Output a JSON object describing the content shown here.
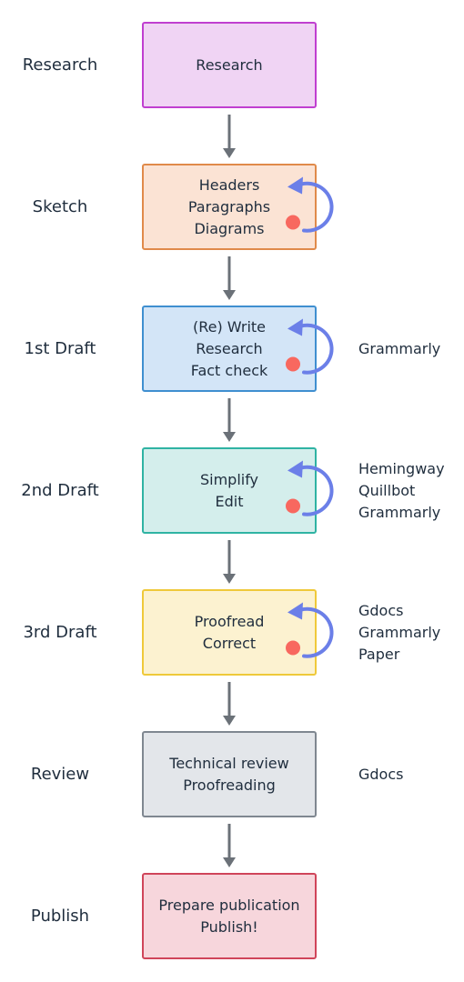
{
  "stages": [
    {
      "label": "Research",
      "lines": [
        "Research"
      ],
      "tools": [],
      "loop": false,
      "fill": "#f0d4f4",
      "stroke": "#c03fd0"
    },
    {
      "label": "Sketch",
      "lines": [
        "Headers",
        "Paragraphs",
        "Diagrams"
      ],
      "tools": [],
      "loop": true,
      "fill": "#fbe3d4",
      "stroke": "#e08a4a"
    },
    {
      "label": "1st Draft",
      "lines": [
        "(Re) Write",
        "Research",
        "Fact check"
      ],
      "tools": [
        "Grammarly"
      ],
      "loop": true,
      "fill": "#d3e5f7",
      "stroke": "#3f8fd0"
    },
    {
      "label": "2nd Draft",
      "lines": [
        "Simplify",
        "Edit"
      ],
      "tools": [
        "Hemingway",
        "Quillbot",
        "Grammarly"
      ],
      "loop": true,
      "fill": "#d4eeec",
      "stroke": "#2fb3a3"
    },
    {
      "label": "3rd Draft",
      "lines": [
        "Proofread",
        "Correct"
      ],
      "tools": [
        "Gdocs",
        "Grammarly",
        "Paper"
      ],
      "loop": true,
      "fill": "#fcf2d0",
      "stroke": "#efc93a"
    },
    {
      "label": "Review",
      "lines": [
        "Technical review",
        "Proofreading"
      ],
      "tools": [
        "Gdocs"
      ],
      "loop": false,
      "fill": "#e3e6ea",
      "stroke": "#7f8790"
    },
    {
      "label": "Publish",
      "lines": [
        "Prepare publication",
        "Publish!"
      ],
      "tools": [],
      "loop": false,
      "fill": "#f7d6dc",
      "stroke": "#d0455a"
    }
  ],
  "colors": {
    "connector": "#6b7178",
    "loop_arrow": "#6b7fe8",
    "loop_dot": "#f8685f"
  },
  "icons": {
    "connector": "arrow-down-icon",
    "loop": "loop-arrow-icon",
    "dot": "status-dot-icon"
  }
}
